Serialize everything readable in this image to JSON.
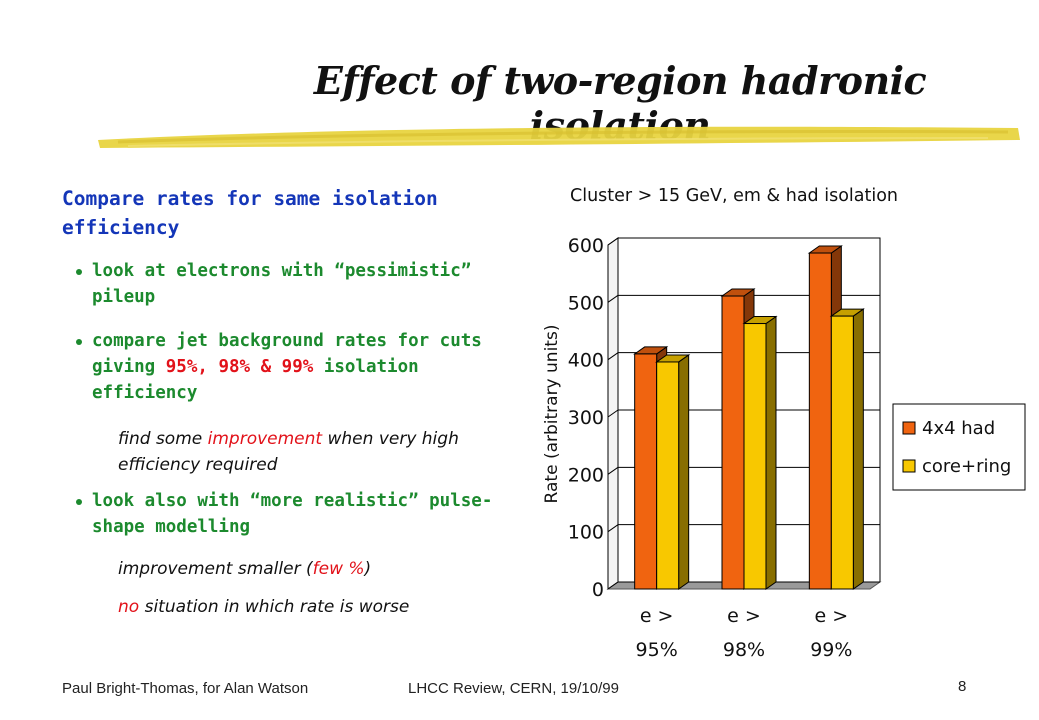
{
  "slide": {
    "title": "Effect of two-region hadronic isolation",
    "heading": "Compare rates for same isolation efficiency",
    "bullet1": "look at electrons with “pessimistic” pileup",
    "bullet2_pre": "compare jet background rates for cuts giving ",
    "bullet2_pct": "95%, 98% & 99%",
    "bullet2_post": " isolation efficiency",
    "note1_pre": "find some ",
    "note1_red": "improvement",
    "note1_post": " when very high efficiency required",
    "bullet3": "look also with “more realistic” pulse-shape modelling",
    "note2_pre": "improvement smaller (",
    "note2_red": "few %",
    "note2_post": ")",
    "note3_red": "no",
    "note3_post": " situation in which rate is worse",
    "footer_author": "Paul Bright-Thomas, for Alan Watson",
    "footer_event": "LHCC Review, CERN,    19/10/99",
    "page_number": "8"
  },
  "colors": {
    "title_underline": "#e8d440",
    "heading": "#1436b8",
    "bullet": "#1c8a2e",
    "highlight": "#e2121a",
    "series_4x4": "#f06410",
    "series_corering": "#f8c800"
  },
  "chart_data": {
    "type": "bar",
    "title": "Cluster > 15 GeV, em & had isolation",
    "ylabel": "Rate (arbitrary units)",
    "xlabel": "",
    "categories": [
      [
        "e >",
        "95%"
      ],
      [
        "e >",
        "98%"
      ],
      [
        "e >",
        "99%"
      ]
    ],
    "series": [
      {
        "name": "4x4 had",
        "values": [
          410,
          511,
          586
        ]
      },
      {
        "name": "core+ring",
        "values": [
          396,
          463,
          476
        ]
      }
    ],
    "ylim": [
      0,
      600
    ],
    "yticks": [
      0,
      100,
      200,
      300,
      400,
      500,
      600
    ],
    "grid": true,
    "legend_position": "right",
    "style": "3d"
  }
}
